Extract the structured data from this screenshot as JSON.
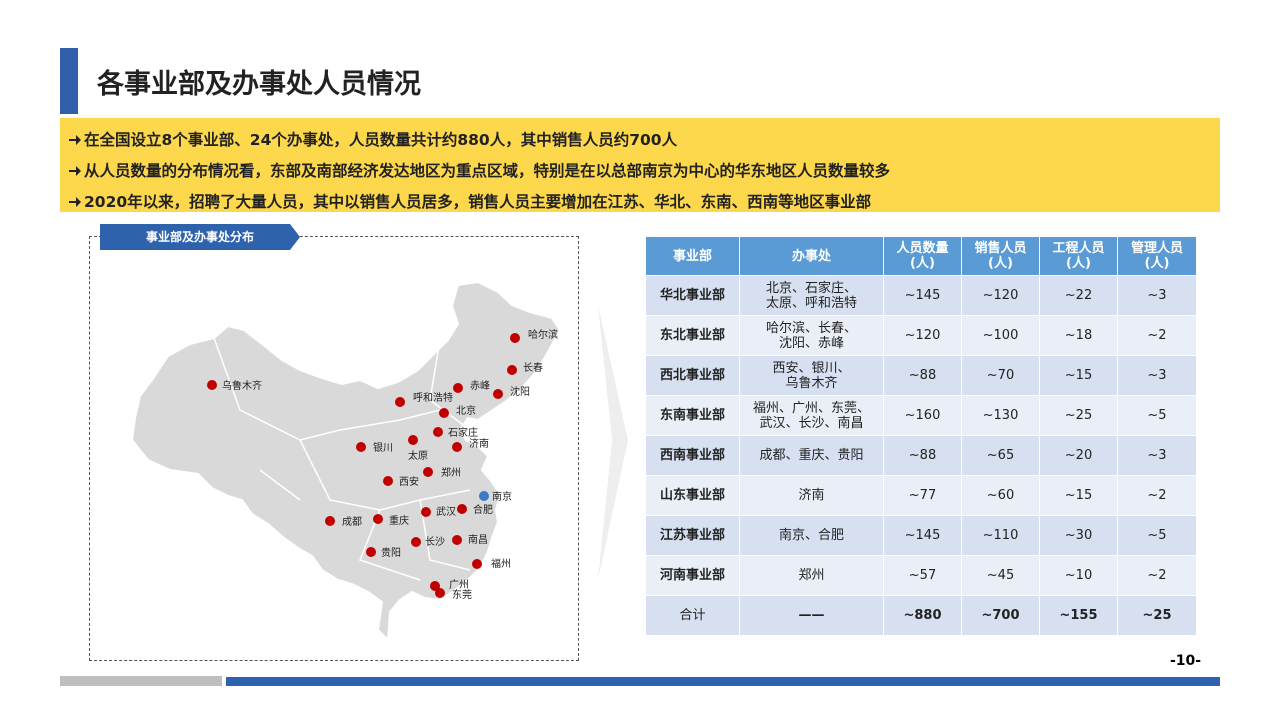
{
  "header": {
    "title": "各事业部及办事处人员情况"
  },
  "bullets": [
    "在全国设立8个事业部、24个办事处，人员数量共计约880人，其中销售人员约700人",
    "从人员数量的分布情况看，东部及南部经济发达地区为重点区域，特别是在以总部南京为中心的华东地区人员数量较多",
    "2020年以来，招聘了大量人员，其中以销售人员居多，销售人员主要增加在江苏、华北、东南、西南等地区事业部"
  ],
  "map": {
    "label": "事业部及办事处分布",
    "cities": [
      "哈尔滨",
      "长春",
      "沈阳",
      "乌鲁木齐",
      "呼和浩特",
      "赤峰",
      "北京",
      "石家庄",
      "济南",
      "银川",
      "太原",
      "郑州",
      "西安",
      "南京",
      "合肥",
      "武汉",
      "成都",
      "重庆",
      "长沙",
      "南昌",
      "贵阳",
      "福州",
      "广州",
      "东莞"
    ]
  },
  "table": {
    "header": [
      [
        "事业部"
      ],
      [
        "办事处"
      ],
      [
        "人员数量",
        "(人)"
      ],
      [
        "销售人员",
        "(人)"
      ],
      [
        "工程人员",
        "(人)"
      ],
      [
        "管理人员",
        "(人)"
      ]
    ],
    "rows": [
      [
        [
          "华北事业部"
        ],
        [
          "北京、石家庄、",
          "太原、呼和浩特"
        ],
        [
          "~145"
        ],
        [
          "~120"
        ],
        [
          "~22"
        ],
        [
          "~3"
        ]
      ],
      [
        [
          "东北事业部"
        ],
        [
          "哈尔滨、长春、",
          "沈阳、赤峰"
        ],
        [
          "~120"
        ],
        [
          "~100"
        ],
        [
          "~18"
        ],
        [
          "~2"
        ]
      ],
      [
        [
          "西北事业部"
        ],
        [
          "西安、银川、",
          "乌鲁木齐"
        ],
        [
          "~88"
        ],
        [
          "~70"
        ],
        [
          "~15"
        ],
        [
          "~3"
        ]
      ],
      [
        [
          "东南事业部"
        ],
        [
          "福州、广州、东莞、",
          "武汉、长沙、南昌"
        ],
        [
          "~160"
        ],
        [
          "~130"
        ],
        [
          "~25"
        ],
        [
          "~5"
        ]
      ],
      [
        [
          "西南事业部"
        ],
        [
          "成都、重庆、贵阳"
        ],
        [
          "~88"
        ],
        [
          "~65"
        ],
        [
          "~20"
        ],
        [
          "~3"
        ]
      ],
      [
        [
          "山东事业部"
        ],
        [
          "济南"
        ],
        [
          "~77"
        ],
        [
          "~60"
        ],
        [
          "~15"
        ],
        [
          "~2"
        ]
      ],
      [
        [
          "江苏事业部"
        ],
        [
          "南京、合肥"
        ],
        [
          "~145"
        ],
        [
          "~110"
        ],
        [
          "~30"
        ],
        [
          "~5"
        ]
      ],
      [
        [
          "河南事业部"
        ],
        [
          "郑州"
        ],
        [
          "~57"
        ],
        [
          "~45"
        ],
        [
          "~10"
        ],
        [
          "~2"
        ]
      ]
    ],
    "total": [
      [
        "合计"
      ],
      [
        "——"
      ],
      [
        "~880"
      ],
      [
        "~700"
      ],
      [
        "~155"
      ],
      [
        "~25"
      ]
    ]
  },
  "footer": {
    "page": "-10-"
  }
}
